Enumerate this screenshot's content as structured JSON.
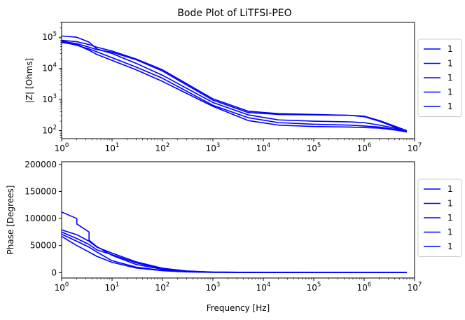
{
  "chart_data": [
    {
      "type": "line",
      "title": "Bode Plot of LiTFSI-PEO",
      "xlabel": "",
      "ylabel": "|Z| [Ohms]",
      "xscale": "log",
      "yscale": "log",
      "xlim": [
        1,
        10000000
      ],
      "ylim": [
        55,
        300000
      ],
      "grid": false,
      "legend_position": "right-outside",
      "line_color": "#0000ff",
      "x_ticks": [
        {
          "value": 1,
          "mant": "10",
          "exp": "0"
        },
        {
          "value": 10,
          "mant": "10",
          "exp": "1"
        },
        {
          "value": 100,
          "mant": "10",
          "exp": "2"
        },
        {
          "value": 1000,
          "mant": "10",
          "exp": "3"
        },
        {
          "value": 10000,
          "mant": "10",
          "exp": "4"
        },
        {
          "value": 100000,
          "mant": "10",
          "exp": "5"
        },
        {
          "value": 1000000,
          "mant": "10",
          "exp": "6"
        },
        {
          "value": 10000000,
          "mant": "10",
          "exp": "7"
        }
      ],
      "y_ticks": [
        {
          "value": 100,
          "mant": "10",
          "exp": "2"
        },
        {
          "value": 1000,
          "mant": "10",
          "exp": "3"
        },
        {
          "value": 10000,
          "mant": "10",
          "exp": "4"
        },
        {
          "value": 100000,
          "mant": "10",
          "exp": "5"
        }
      ],
      "series": [
        {
          "name": "1",
          "x": [
            1,
            2,
            3.5,
            5,
            10,
            30,
            100,
            1000,
            5000,
            20000,
            100000,
            500000,
            1000000,
            2000000,
            4000000,
            7000000
          ],
          "y": [
            110000,
            100000,
            70000,
            42000,
            30000,
            14500,
            6000,
            800,
            320,
            220,
            200,
            190,
            180,
            150,
            120,
            90
          ]
        },
        {
          "name": "1",
          "x": [
            1,
            2,
            3.5,
            5,
            10,
            30,
            100,
            1000,
            5000,
            20000,
            100000,
            500000,
            1000000,
            2000000,
            4000000,
            7000000
          ],
          "y": [
            80000,
            72000,
            58000,
            48000,
            36000,
            20000,
            9000,
            1050,
            420,
            350,
            330,
            310,
            280,
            200,
            130,
            90
          ]
        },
        {
          "name": "1",
          "x": [
            1,
            2,
            3.5,
            5,
            10,
            30,
            100,
            1000,
            5000,
            20000,
            100000,
            500000,
            1000000,
            2000000,
            4000000,
            7000000
          ],
          "y": [
            75000,
            62000,
            48000,
            40000,
            33000,
            19000,
            8200,
            950,
            380,
            330,
            320,
            310,
            290,
            210,
            140,
            100
          ]
        },
        {
          "name": "1",
          "x": [
            1,
            2,
            3.5,
            5,
            10,
            30,
            100,
            1000,
            5000,
            20000,
            100000,
            500000,
            1000000,
            2000000,
            4000000,
            7000000
          ],
          "y": [
            72000,
            55000,
            42000,
            34000,
            22000,
            11000,
            4800,
            650,
            260,
            180,
            160,
            150,
            140,
            130,
            110,
            95
          ]
        },
        {
          "name": "1",
          "x": [
            1,
            2,
            3.5,
            5,
            10,
            30,
            100,
            1000,
            5000,
            20000,
            100000,
            500000,
            1000000,
            2000000,
            4000000,
            7000000
          ],
          "y": [
            68000,
            58000,
            38000,
            28000,
            18000,
            9000,
            3800,
            600,
            210,
            150,
            135,
            130,
            125,
            120,
            105,
            90
          ]
        }
      ]
    },
    {
      "type": "line",
      "title": "",
      "xlabel": "Frequency [Hz]",
      "ylabel": "Phase [Degrees]",
      "xscale": "log",
      "yscale": "linear",
      "xlim": [
        1,
        10000000
      ],
      "ylim": [
        -10000,
        205000
      ],
      "grid": false,
      "legend_position": "right-outside",
      "line_color": "#0000ff",
      "x_ticks": [
        {
          "value": 1,
          "mant": "10",
          "exp": "0"
        },
        {
          "value": 10,
          "mant": "10",
          "exp": "1"
        },
        {
          "value": 100,
          "mant": "10",
          "exp": "2"
        },
        {
          "value": 1000,
          "mant": "10",
          "exp": "3"
        },
        {
          "value": 10000,
          "mant": "10",
          "exp": "4"
        },
        {
          "value": 100000,
          "mant": "10",
          "exp": "5"
        },
        {
          "value": 1000000,
          "mant": "10",
          "exp": "6"
        },
        {
          "value": 10000000,
          "mant": "10",
          "exp": "7"
        }
      ],
      "y_ticks": [
        {
          "value": 0,
          "label": "0"
        },
        {
          "value": 50000,
          "label": "50000"
        },
        {
          "value": 100000,
          "label": "100000"
        },
        {
          "value": 150000,
          "label": "150000"
        },
        {
          "value": 200000,
          "label": "200000"
        }
      ],
      "series": [
        {
          "name": "1",
          "x": [
            1,
            2,
            2,
            3.5,
            3.5,
            5,
            10,
            30,
            100,
            300,
            1000,
            10000,
            100000,
            1000000,
            7000000
          ],
          "y": [
            112000,
            100000,
            90000,
            75000,
            60000,
            48000,
            32000,
            15000,
            6000,
            2000,
            800,
            300,
            150,
            100,
            100
          ]
        },
        {
          "name": "1",
          "x": [
            1,
            2,
            3.5,
            5,
            10,
            30,
            100,
            300,
            1000,
            10000,
            100000,
            1000000,
            7000000
          ],
          "y": [
            79000,
            70000,
            58000,
            47000,
            36000,
            20000,
            8000,
            3000,
            1000,
            300,
            150,
            100,
            100
          ]
        },
        {
          "name": "1",
          "x": [
            1,
            2,
            3.5,
            5,
            10,
            30,
            100,
            300,
            1000,
            10000,
            100000,
            1000000,
            7000000
          ],
          "y": [
            75000,
            63000,
            52000,
            42000,
            33000,
            18000,
            7000,
            2500,
            900,
            300,
            150,
            100,
            100
          ]
        },
        {
          "name": "1",
          "x": [
            1,
            2,
            3.5,
            5,
            10,
            30,
            100,
            300,
            1000,
            10000,
            100000,
            1000000,
            7000000
          ],
          "y": [
            71000,
            58000,
            47000,
            38000,
            22000,
            10000,
            4000,
            1500,
            600,
            200,
            100,
            100,
            100
          ]
        },
        {
          "name": "1",
          "x": [
            1,
            2,
            3.5,
            5,
            10,
            30,
            100,
            300,
            1000,
            10000,
            100000,
            1000000,
            7000000
          ],
          "y": [
            67000,
            50000,
            38000,
            30000,
            19000,
            8500,
            3500,
            1200,
            500,
            200,
            100,
            100,
            100
          ]
        }
      ]
    }
  ]
}
